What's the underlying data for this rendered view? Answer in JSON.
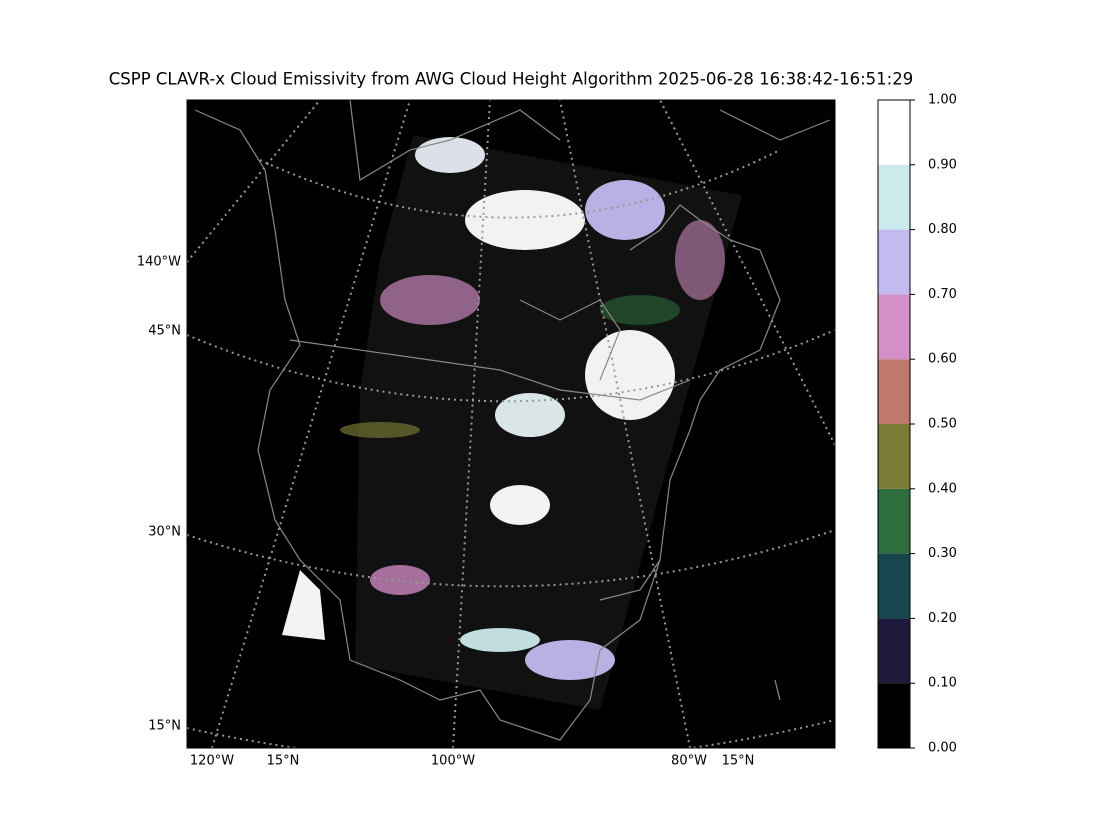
{
  "title": "CSPP CLAVR-x Cloud Emissivity from AWG Cloud Height Algorithm 2025-06-28 16:38:42-16:51:29",
  "map_labels": {
    "left": [
      "140°W",
      "45°N",
      "30°N",
      "15°N"
    ],
    "bottom": [
      "120°W",
      "15°N",
      "100°W",
      "80°W",
      "15°N"
    ]
  },
  "colorbar": {
    "lim": [
      0,
      1
    ],
    "ticks": [
      {
        "value": 0,
        "label": "0.00"
      },
      {
        "value": 0.1,
        "label": "0.10"
      },
      {
        "value": 0.2,
        "label": "0.20"
      },
      {
        "value": 0.3,
        "label": "0.30"
      },
      {
        "value": 0.4,
        "label": "0.40"
      },
      {
        "value": 0.5,
        "label": "0.50"
      },
      {
        "value": 0.6,
        "label": "0.60"
      },
      {
        "value": 0.7,
        "label": "0.70"
      },
      {
        "value": 0.8,
        "label": "0.80"
      },
      {
        "value": 0.9,
        "label": "0.90"
      },
      {
        "value": 1,
        "label": "1.00"
      }
    ],
    "colors": [
      "#000000",
      "#1e1a3b",
      "#17464f",
      "#2d6e3c",
      "#7a7c35",
      "#c0786a",
      "#d48fc8",
      "#c3baf0",
      "#cce9ec",
      "#ffffff"
    ]
  }
}
